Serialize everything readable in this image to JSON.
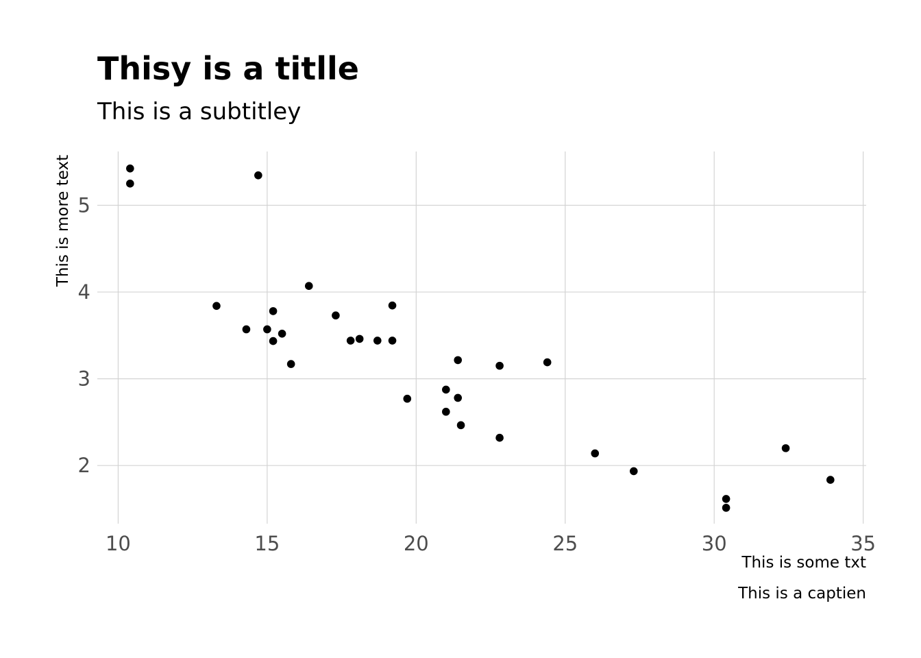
{
  "chart_data": {
    "type": "scatter",
    "title": "Thisy is a titlle",
    "subtitle": "This is a subtitley",
    "xlabel": "This is some txt",
    "ylabel": "This is more text",
    "caption": "This is a captien",
    "xlim": [
      9.3,
      35.1
    ],
    "ylim": [
      1.33,
      5.62
    ],
    "xticks": [
      10,
      15,
      20,
      25,
      30,
      35
    ],
    "yticks": [
      2,
      3,
      4,
      5
    ],
    "grid": true,
    "point_color": "#000000",
    "series": [
      {
        "x": [
          21.0,
          21.0,
          22.8,
          21.4,
          18.7,
          18.1,
          14.3,
          24.4,
          22.8,
          19.2,
          17.8,
          16.4,
          17.3,
          15.2,
          10.4,
          10.4,
          14.7,
          32.4,
          30.4,
          33.9,
          21.5,
          15.5,
          15.2,
          13.3,
          19.2,
          27.3,
          26.0,
          30.4,
          15.8,
          19.7,
          15.0,
          21.4
        ],
        "y": [
          2.62,
          2.875,
          2.32,
          3.215,
          3.44,
          3.46,
          3.57,
          3.19,
          3.15,
          3.44,
          3.44,
          4.07,
          3.73,
          3.78,
          5.25,
          5.424,
          5.345,
          2.2,
          1.615,
          1.835,
          2.465,
          3.52,
          3.435,
          3.84,
          3.845,
          1.935,
          2.14,
          1.513,
          3.17,
          2.77,
          3.57,
          2.78
        ]
      }
    ]
  }
}
